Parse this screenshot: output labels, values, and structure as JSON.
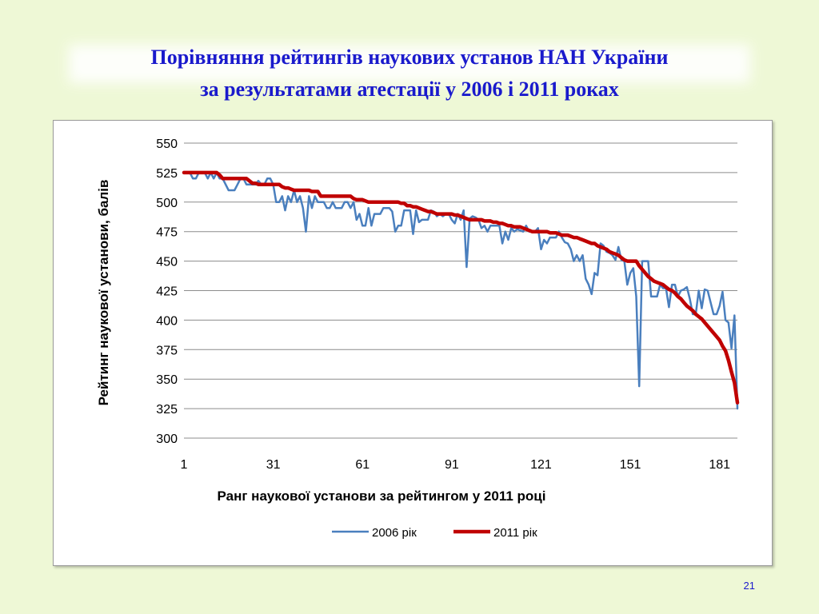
{
  "slide": {
    "title_line1": "Порівняння рейтингів наукових установ НАН України",
    "title_line2": "за результатами атестації у 2006 і 2011 роках",
    "page_number": "21"
  },
  "colors": {
    "title": "#1a1acc",
    "series_2006": "#4a7fbe",
    "series_2011": "#c00000",
    "background": "#eef8d6"
  },
  "chart_data": {
    "type": "line",
    "xlabel": "Ранг наукової установи за рейтингом у 2011 році",
    "ylabel": "Рейтинг наукової установи, балів",
    "xlim": [
      1,
      187
    ],
    "ylim": [
      300,
      550
    ],
    "x_ticks": [
      1,
      31,
      61,
      91,
      121,
      151,
      181
    ],
    "y_ticks": [
      300,
      325,
      350,
      375,
      400,
      425,
      450,
      475,
      500,
      525,
      550
    ],
    "grid": "horizontal",
    "legend_position": "bottom",
    "series": [
      {
        "name": "2006 рік",
        "x": [
          1,
          2,
          3,
          4,
          5,
          6,
          7,
          8,
          9,
          10,
          11,
          12,
          13,
          14,
          15,
          16,
          17,
          18,
          19,
          20,
          21,
          22,
          23,
          24,
          25,
          26,
          27,
          28,
          29,
          30,
          31,
          32,
          33,
          34,
          35,
          36,
          37,
          38,
          39,
          40,
          41,
          42,
          43,
          44,
          45,
          46,
          47,
          48,
          49,
          50,
          51,
          52,
          53,
          54,
          55,
          56,
          57,
          58,
          59,
          60,
          61,
          62,
          63,
          64,
          65,
          66,
          67,
          68,
          69,
          70,
          71,
          72,
          73,
          74,
          75,
          76,
          77,
          78,
          79,
          80,
          81,
          82,
          83,
          84,
          85,
          86,
          87,
          88,
          89,
          90,
          91,
          92,
          93,
          94,
          95,
          96,
          97,
          98,
          99,
          100,
          101,
          102,
          103,
          104,
          105,
          106,
          107,
          108,
          109,
          110,
          111,
          112,
          113,
          114,
          115,
          116,
          117,
          118,
          119,
          120,
          121,
          122,
          123,
          124,
          125,
          126,
          127,
          128,
          129,
          130,
          131,
          132,
          133,
          134,
          135,
          136,
          137,
          138,
          139,
          140,
          141,
          142,
          143,
          144,
          145,
          146,
          147,
          148,
          149,
          150,
          151,
          152,
          153,
          154,
          155,
          156,
          157,
          158,
          159,
          160,
          161,
          162,
          163,
          164,
          165,
          166,
          167,
          168,
          169,
          170,
          171,
          172,
          173,
          174,
          175,
          176,
          177,
          178,
          179,
          180,
          181,
          182,
          183,
          184,
          185,
          186,
          187
        ],
        "y": [
          525,
          525,
          525,
          520,
          520,
          525,
          525,
          525,
          520,
          525,
          520,
          525,
          520,
          520,
          515,
          510,
          510,
          510,
          515,
          520,
          520,
          515,
          515,
          515,
          515,
          518,
          515,
          515,
          520,
          520,
          515,
          500,
          500,
          505,
          493,
          505,
          500,
          510,
          500,
          505,
          495,
          475,
          505,
          495,
          505,
          500,
          500,
          500,
          495,
          495,
          500,
          495,
          495,
          495,
          500,
          500,
          495,
          500,
          485,
          490,
          480,
          480,
          495,
          480,
          490,
          490,
          490,
          495,
          495,
          495,
          492,
          475,
          480,
          480,
          493,
          493,
          493,
          473,
          493,
          483,
          485,
          485,
          485,
          493,
          492,
          488,
          490,
          488,
          490,
          490,
          485,
          482,
          490,
          485,
          493,
          445,
          486,
          488,
          487,
          485,
          478,
          480,
          475,
          480,
          480,
          480,
          480,
          465,
          475,
          468,
          478,
          475,
          477,
          476,
          475,
          480,
          475,
          475,
          475,
          478,
          460,
          468,
          465,
          470,
          470,
          470,
          475,
          470,
          466,
          465,
          460,
          450,
          455,
          450,
          455,
          435,
          430,
          422,
          440,
          438,
          465,
          463,
          458,
          457,
          455,
          451,
          462,
          451,
          450,
          430,
          440,
          444,
          420,
          344,
          450,
          450,
          450,
          420,
          420,
          420,
          430,
          427,
          427,
          411,
          430,
          430,
          420,
          425,
          426,
          428,
          418,
          405,
          405,
          425,
          410,
          426,
          425,
          415,
          405,
          405,
          412,
          424,
          400,
          398,
          376,
          404,
          325
        ]
      },
      {
        "name": "2011 рік",
        "x": [
          1,
          2,
          3,
          4,
          5,
          6,
          7,
          8,
          9,
          10,
          11,
          12,
          13,
          14,
          15,
          16,
          17,
          18,
          19,
          20,
          21,
          22,
          23,
          24,
          25,
          26,
          27,
          28,
          29,
          30,
          31,
          32,
          33,
          34,
          35,
          36,
          37,
          38,
          39,
          40,
          41,
          42,
          43,
          44,
          45,
          46,
          47,
          48,
          49,
          50,
          51,
          52,
          53,
          54,
          55,
          56,
          57,
          58,
          59,
          60,
          61,
          62,
          63,
          64,
          65,
          66,
          67,
          68,
          69,
          70,
          71,
          72,
          73,
          74,
          75,
          76,
          77,
          78,
          79,
          80,
          81,
          82,
          83,
          84,
          85,
          86,
          87,
          88,
          89,
          90,
          91,
          92,
          93,
          94,
          95,
          96,
          97,
          98,
          99,
          100,
          101,
          102,
          103,
          104,
          105,
          106,
          107,
          108,
          109,
          110,
          111,
          112,
          113,
          114,
          115,
          116,
          117,
          118,
          119,
          120,
          121,
          122,
          123,
          124,
          125,
          126,
          127,
          128,
          129,
          130,
          131,
          132,
          133,
          134,
          135,
          136,
          137,
          138,
          139,
          140,
          141,
          142,
          143,
          144,
          145,
          146,
          147,
          148,
          149,
          150,
          151,
          152,
          153,
          154,
          155,
          156,
          157,
          158,
          159,
          160,
          161,
          162,
          163,
          164,
          165,
          166,
          167,
          168,
          169,
          170,
          171,
          172,
          173,
          174,
          175,
          176,
          177,
          178,
          179,
          180,
          181,
          182,
          183,
          184,
          185,
          186,
          187
        ],
        "y": [
          525,
          525,
          525,
          525,
          525,
          525,
          525,
          525,
          525,
          525,
          525,
          525,
          523,
          520,
          520,
          520,
          520,
          520,
          520,
          520,
          520,
          520,
          518,
          516,
          516,
          515,
          515,
          515,
          515,
          515,
          515,
          515,
          515,
          513,
          512,
          512,
          511,
          510,
          510,
          510,
          510,
          510,
          510,
          509,
          509,
          509,
          505,
          505,
          505,
          505,
          505,
          505,
          505,
          505,
          505,
          505,
          505,
          503,
          502,
          502,
          502,
          501,
          500,
          500,
          500,
          500,
          500,
          500,
          500,
          500,
          500,
          500,
          500,
          499,
          499,
          497,
          497,
          496,
          496,
          495,
          494,
          493,
          492,
          492,
          491,
          490,
          490,
          490,
          490,
          490,
          490,
          489,
          489,
          488,
          487,
          486,
          485,
          485,
          485,
          485,
          485,
          484,
          484,
          484,
          483,
          483,
          482,
          482,
          481,
          480,
          480,
          479,
          479,
          479,
          478,
          477,
          476,
          475,
          475,
          475,
          475,
          475,
          475,
          474,
          474,
          474,
          473,
          472,
          472,
          472,
          471,
          470,
          470,
          469,
          468,
          467,
          466,
          465,
          465,
          463,
          462,
          461,
          460,
          458,
          457,
          456,
          455,
          453,
          451,
          450,
          450,
          450,
          450,
          446,
          443,
          440,
          437,
          435,
          433,
          432,
          431,
          430,
          428,
          426,
          425,
          423,
          420,
          418,
          415,
          412,
          410,
          408,
          405,
          403,
          401,
          398,
          395,
          392,
          389,
          386,
          383,
          378,
          374,
          366,
          356,
          347,
          330
        ]
      }
    ]
  }
}
